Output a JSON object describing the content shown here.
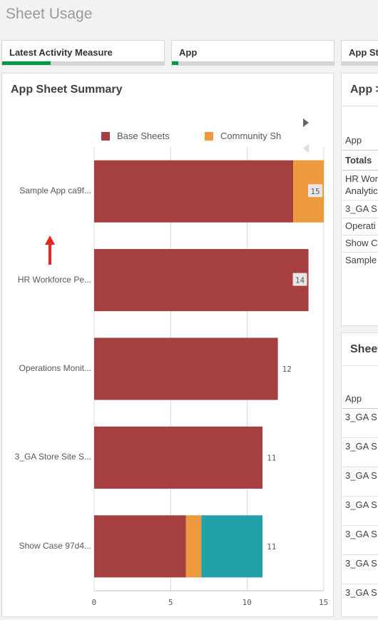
{
  "page": {
    "title": "Sheet Usage"
  },
  "filters": [
    {
      "label": "Latest Activity Measure",
      "fill_fraction": 0.3
    },
    {
      "label": "App",
      "fill_fraction": 0.04
    },
    {
      "label": "App St",
      "fill_fraction": 0
    }
  ],
  "summary_panel": {
    "title": "App Sheet Summary"
  },
  "chart_data": {
    "type": "bar",
    "orientation": "horizontal",
    "stacked": true,
    "categories": [
      "Sample App ca9f...",
      "HR Workforce Pe...",
      "Operations Monit...",
      "3_GA Store Site S...",
      "Show Case 97d4..."
    ],
    "series": [
      {
        "name": "Base Sheets",
        "color": "#a63f3f",
        "values": [
          13,
          14,
          12,
          11,
          6
        ]
      },
      {
        "name": "Community Sh",
        "color": "#ec9a3c",
        "values": [
          2,
          0,
          0,
          0,
          1
        ]
      },
      {
        "color": "#22a1a8",
        "values": [
          0,
          0,
          0,
          0,
          4
        ]
      }
    ],
    "totals": [
      "15",
      "14",
      "12",
      "11",
      "11"
    ],
    "xlim": [
      0,
      15
    ],
    "xticks": [
      "0",
      "5",
      "10",
      "15"
    ],
    "grid": true,
    "legend_position": "top"
  },
  "right_panel_1": {
    "title": "App >",
    "header": "App",
    "totals_label": "Totals",
    "rows": [
      "HR Wor",
      "Analytic",
      "3_GA S",
      "Operati",
      "Show C",
      "Sample"
    ]
  },
  "right_panel_2": {
    "title": "Sheet",
    "header": "App",
    "rows": [
      "3_GA S",
      "3_GA S",
      "3_GA S",
      "3_GA S",
      "3_GA S",
      "3_GA S",
      "3_GA S"
    ]
  }
}
